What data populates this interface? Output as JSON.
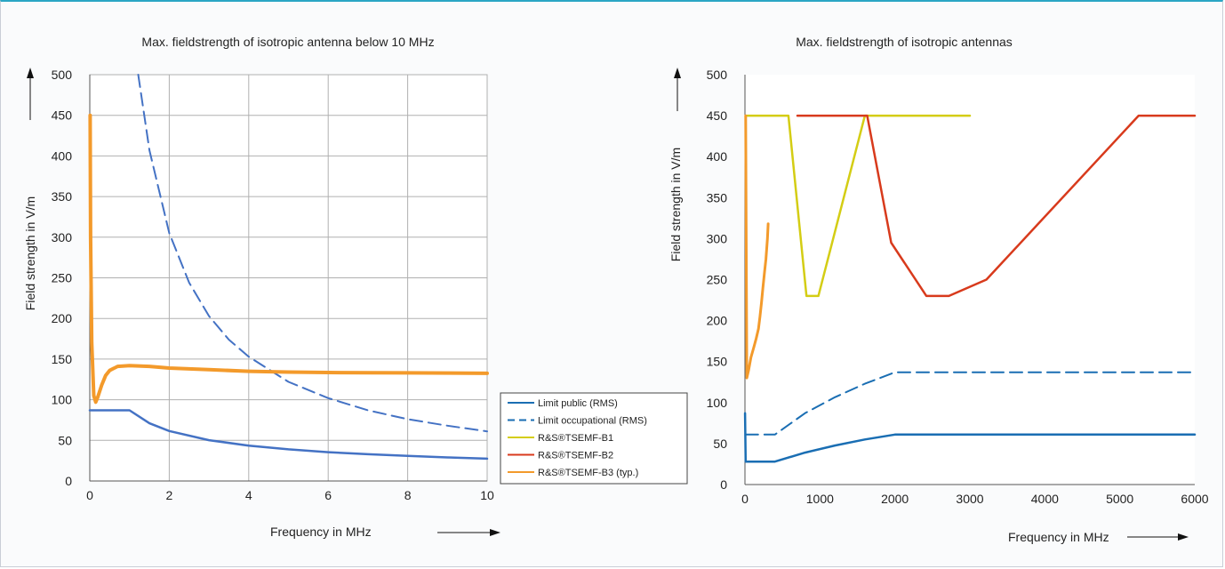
{
  "chart_data": [
    {
      "type": "line",
      "title": "Max. fieldstrength of isotropic antenna below 10 MHz",
      "xlabel": "Frequency in MHz",
      "ylabel": "Field strength in V/m",
      "xlim": [
        0,
        10
      ],
      "ylim": [
        0,
        500
      ],
      "xticks": [
        "0",
        "2",
        "4",
        "6",
        "8",
        "10"
      ],
      "yticks": [
        "0",
        "50",
        "100",
        "150",
        "200",
        "250",
        "300",
        "350",
        "400",
        "450",
        "500"
      ],
      "grid": true,
      "series": [
        {
          "name": "Limit public (RMS)",
          "color": "#4472c4",
          "dash": false,
          "width": 2.5,
          "x": [
            0,
            1,
            1.5,
            2,
            3,
            4,
            5,
            6,
            7,
            8,
            9,
            10
          ],
          "y": [
            87,
            87,
            71,
            61.5,
            50.2,
            43.5,
            38.9,
            35.5,
            32.9,
            30.8,
            29,
            27.5
          ]
        },
        {
          "name": "Limit occupational (RMS)",
          "color": "#4472c4",
          "dash": true,
          "width": 2,
          "x": [
            1.22,
            1.5,
            2,
            2.5,
            3,
            3.5,
            4,
            5,
            6,
            7,
            8,
            9,
            10
          ],
          "y": [
            500,
            407,
            305,
            244,
            203,
            174,
            153,
            122,
            102,
            87,
            76,
            68,
            61
          ]
        },
        {
          "name": "R&S®TSEMF-B3 (typ.)",
          "color": "#f39a2b",
          "dash": false,
          "width": 4,
          "x": [
            0.01,
            0.02,
            0.05,
            0.1,
            0.15,
            0.2,
            0.3,
            0.4,
            0.5,
            0.7,
            1,
            1.5,
            2,
            3,
            4,
            5,
            6,
            7,
            8,
            10
          ],
          "y": [
            450,
            300,
            170,
            105,
            97,
            103,
            118,
            130,
            136,
            141,
            142,
            141,
            139,
            137,
            135,
            134,
            133.5,
            133.2,
            133,
            132.5
          ]
        }
      ]
    },
    {
      "type": "line",
      "title": "Max. fieldstrength of isotropic antennas",
      "xlabel": "Frequency in MHz",
      "ylabel": "Field strength in V/m",
      "xlim": [
        0,
        6000
      ],
      "ylim": [
        0,
        500
      ],
      "xticks": [
        "0",
        "1000",
        "2000",
        "3000",
        "4000",
        "5000",
        "6000"
      ],
      "yticks": [
        "0",
        "50",
        "100",
        "150",
        "200",
        "250",
        "300",
        "350",
        "400",
        "450",
        "500"
      ],
      "grid": false,
      "series": [
        {
          "name": "Limit public (RMS)",
          "color": "#1a6eb3",
          "dash": false,
          "width": 2.5,
          "x": [
            1,
            10,
            400,
            800,
            1200,
            1600,
            2000,
            6000
          ],
          "y": [
            87,
            28,
            28,
            38.9,
            47.6,
            55,
            61,
            61
          ]
        },
        {
          "name": "Limit occupational (RMS)",
          "color": "#1a6eb3",
          "dash": true,
          "width": 2,
          "x": [
            10,
            400,
            800,
            1200,
            1600,
            2000,
            6000
          ],
          "y": [
            61,
            61,
            87,
            106.5,
            123,
            137,
            137
          ]
        },
        {
          "name": "R&S®TSEMF-B1",
          "color": "#d4cd14",
          "dash": false,
          "width": 2.5,
          "x": [
            30,
            580,
            820,
            980,
            1600,
            3000
          ],
          "y": [
            450,
            450,
            230,
            230,
            450,
            450
          ]
        },
        {
          "name": "R&S®TSEMF-B2",
          "color": "#d83a1c",
          "dash": false,
          "width": 2.5,
          "x": [
            700,
            1630,
            1950,
            2420,
            2720,
            3220,
            5250,
            6000
          ],
          "y": [
            450,
            450,
            295,
            230,
            230,
            250,
            450,
            450
          ]
        },
        {
          "name": "R&S®TSEMF-B3 (typ.)",
          "color": "#f39a2b",
          "dash": false,
          "width": 3,
          "x": [
            9,
            25,
            50,
            80,
            120,
            150,
            180,
            200,
            220,
            240,
            260,
            280,
            300,
            310
          ],
          "y": [
            450,
            130,
            140,
            155,
            168,
            178,
            190,
            205,
            222,
            240,
            258,
            275,
            300,
            318
          ]
        }
      ]
    }
  ],
  "legend": {
    "items": [
      {
        "label": "Limit public (RMS)",
        "color": "#1a6eb3",
        "dash": false
      },
      {
        "label": "Limit occupational (RMS)",
        "color": "#1a6eb3",
        "dash": true
      },
      {
        "label": "R&S®TSEMF-B1",
        "color": "#d4cd14",
        "dash": false
      },
      {
        "label": "R&S®TSEMF-B2",
        "color": "#d83a1c",
        "dash": false
      },
      {
        "label": "R&S®TSEMF-B3 (typ.)",
        "color": "#f39a2b",
        "dash": false
      }
    ]
  }
}
